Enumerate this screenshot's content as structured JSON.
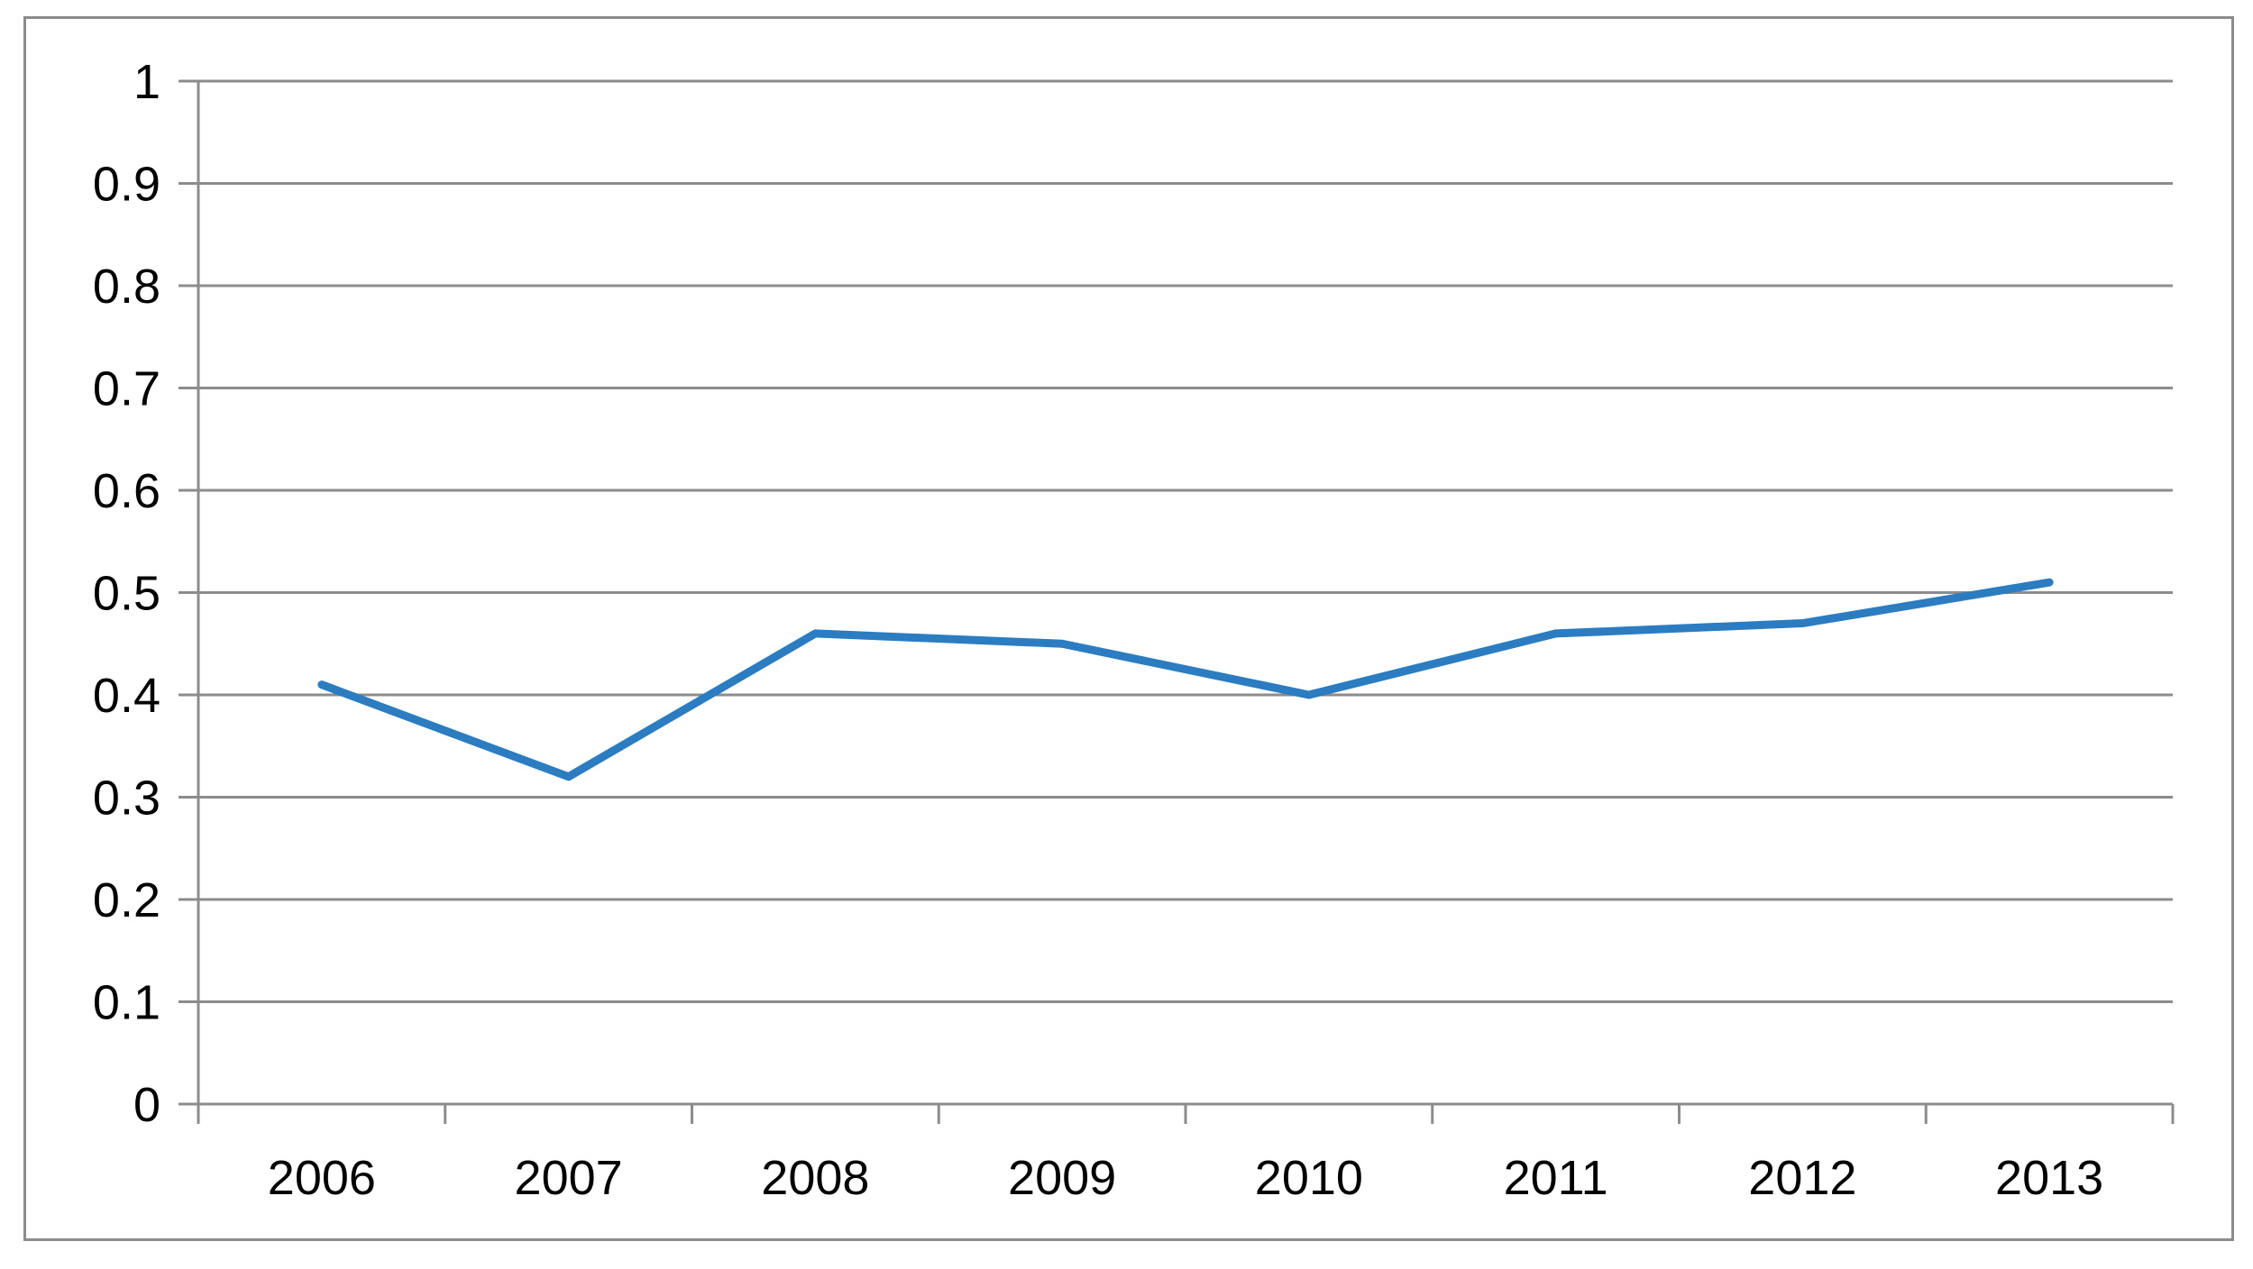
{
  "chart_data": {
    "type": "line",
    "categories": [
      "2006",
      "2007",
      "2008",
      "2009",
      "2010",
      "2011",
      "2012",
      "2013"
    ],
    "series": [
      {
        "values": [
          0.41,
          0.32,
          0.46,
          0.45,
          0.4,
          0.46,
          0.47,
          0.51
        ],
        "color": "#2b7cc1"
      }
    ],
    "ylim": [
      0,
      1
    ],
    "yticks": [
      "0",
      "0.1",
      "0.2",
      "0.3",
      "0.4",
      "0.5",
      "0.6",
      "0.7",
      "0.8",
      "0.9",
      "1"
    ],
    "ytick_values": [
      0,
      0.1,
      0.2,
      0.3,
      0.4,
      0.5,
      0.6,
      0.7,
      0.8,
      0.9,
      1
    ],
    "grid": true,
    "legend": false,
    "title": "",
    "xlabel": "",
    "ylabel": ""
  }
}
